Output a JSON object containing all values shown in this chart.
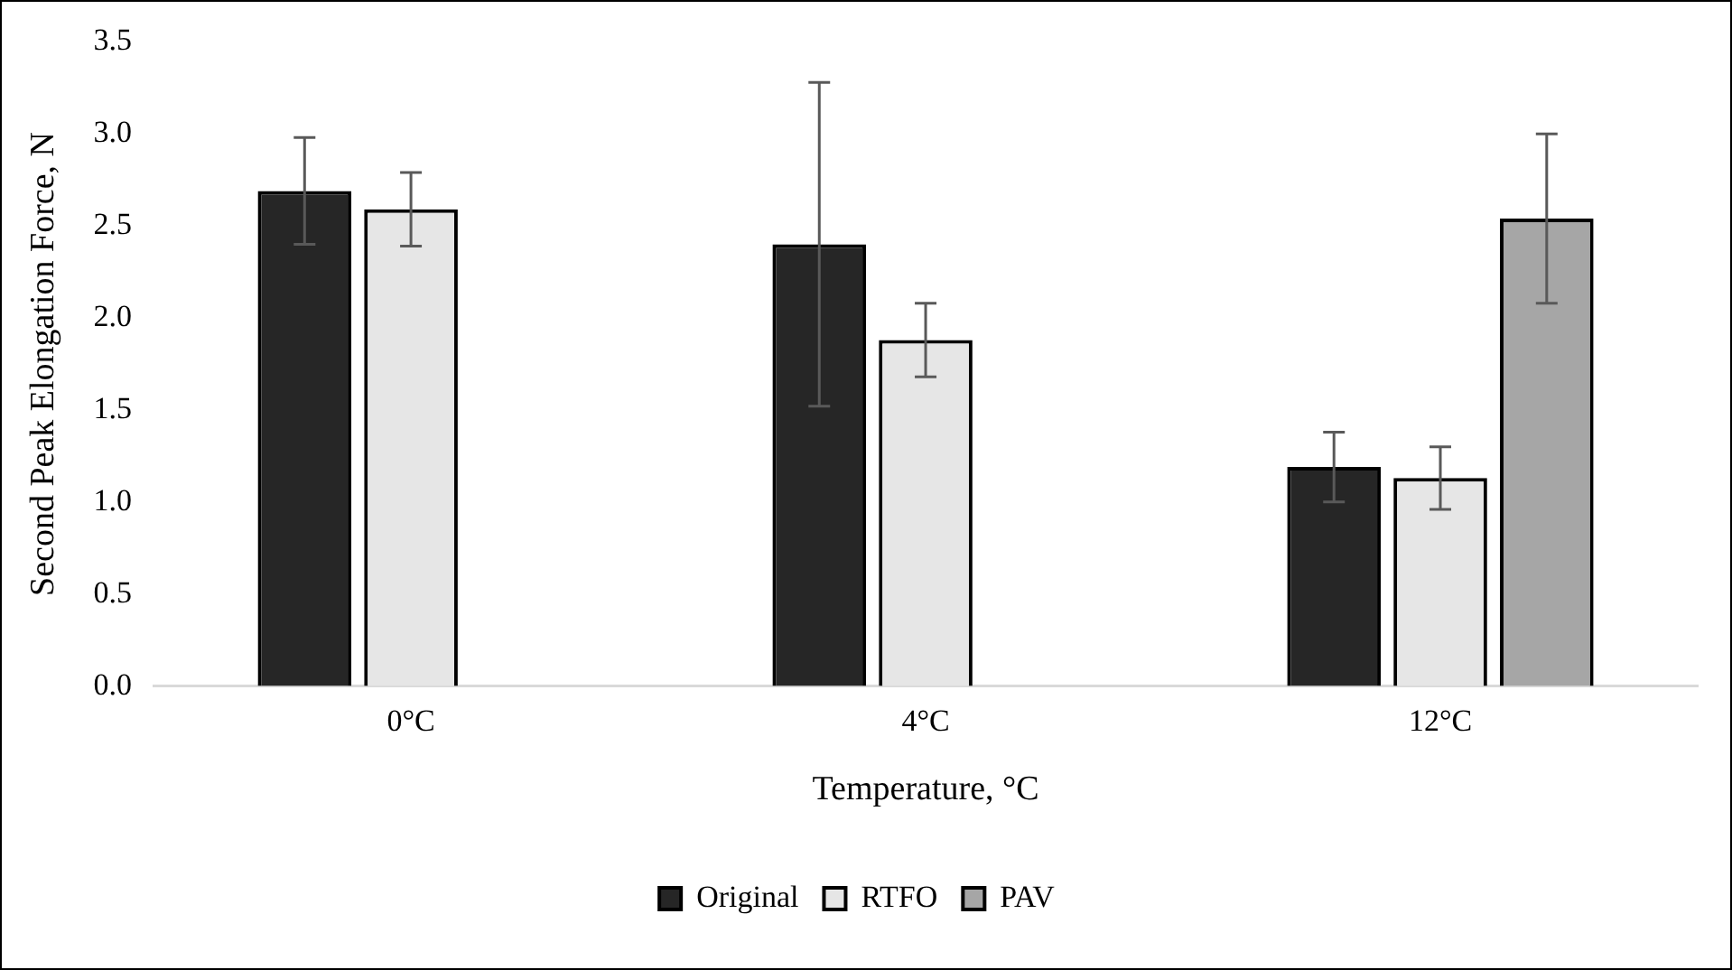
{
  "chart_data": {
    "type": "bar",
    "xlabel": "Temperature, °C",
    "ylabel": "Second Peak Elongation Force, N",
    "categories": [
      "0°C",
      "4°C",
      "12°C"
    ],
    "series": [
      {
        "name": "Original",
        "color": "#262626",
        "values": [
          2.69,
          2.4,
          1.19
        ],
        "errors": [
          0.29,
          0.88,
          0.19
        ]
      },
      {
        "name": "RTFO",
        "color": "#e6e6e6",
        "values": [
          2.59,
          1.88,
          1.13
        ],
        "errors": [
          0.2,
          0.2,
          0.17
        ]
      },
      {
        "name": "PAV",
        "color": "#a6a6a6",
        "values": [
          0,
          0,
          2.54
        ],
        "errors": [
          null,
          null,
          0.46
        ]
      }
    ],
    "ylim": [
      0,
      3.5
    ],
    "yticks": [
      {
        "value": 0,
        "label": "0.0"
      },
      {
        "value": 0.5,
        "label": "0.5"
      },
      {
        "value": 1,
        "label": "1.0"
      },
      {
        "value": 1.5,
        "label": "1.5"
      },
      {
        "value": 2,
        "label": "2.0"
      },
      {
        "value": 2.5,
        "label": "2.5"
      },
      {
        "value": 3,
        "label": "3.0"
      },
      {
        "value": 3.5,
        "label": "3.5"
      }
    ],
    "grid": false,
    "legend": "bottom"
  }
}
